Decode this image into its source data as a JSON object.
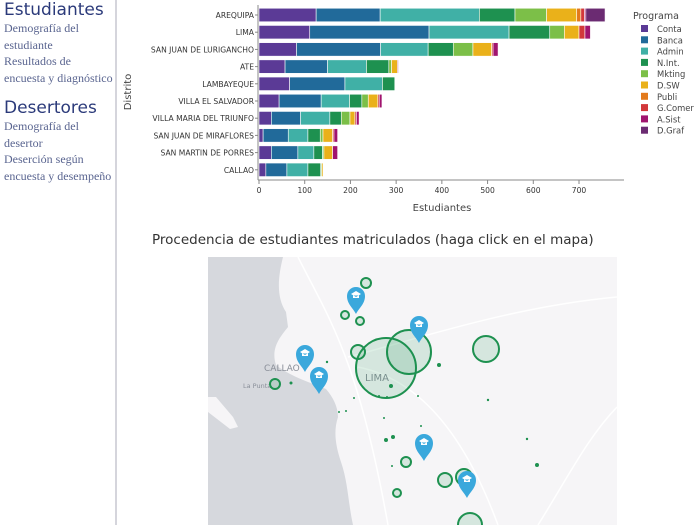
{
  "sidebar": {
    "sections": [
      {
        "title": "Estudiantes",
        "links": [
          "Demografía del estudiante",
          "Resultados de encuesta y diagnóstico"
        ]
      },
      {
        "title": "Desertores",
        "links": [
          "Demografía del desertor",
          "Deserción según encuesta y desempeño"
        ]
      }
    ]
  },
  "chart_data": {
    "type": "bar",
    "orientation": "horizontal",
    "stacked": true,
    "xlabel": "Estudiantes",
    "ylabel": "Distrito",
    "xlim": [
      0,
      760
    ],
    "xticks": [
      0,
      100,
      200,
      300,
      400,
      500,
      600,
      700
    ],
    "legend_title": "Programa",
    "legend_position": "right",
    "categories": [
      "AREQUIPA",
      "LIMA",
      "SAN JUAN DE LURIGANCHO",
      "ATE",
      "LAMBAYEQUE",
      "VILLA EL SALVADOR",
      "VILLA MARIA DEL TRIUNFO",
      "SAN JUAN DE MIRAFLORES",
      "SAN MARTIN DE PORRES",
      "CALLAO"
    ],
    "series": [
      {
        "name": "Conta",
        "color": "#5b3a96",
        "values": [
          125,
          111,
          82,
          57,
          67,
          44,
          27,
          9,
          27,
          15
        ]
      },
      {
        "name": "Banca",
        "color": "#216a9a",
        "values": [
          140,
          261,
          184,
          93,
          121,
          92,
          64,
          55,
          58,
          46
        ]
      },
      {
        "name": "Admin",
        "color": "#40b0a6",
        "values": [
          217,
          175,
          104,
          85,
          82,
          62,
          64,
          43,
          35,
          46
        ]
      },
      {
        "name": "N.Int.",
        "color": "#1e9150",
        "values": [
          78,
          89,
          55,
          49,
          27,
          27,
          25,
          27,
          19,
          28
        ]
      },
      {
        "name": "Mkting",
        "color": "#7cbf48",
        "values": [
          69,
          32,
          43,
          6,
          0,
          14,
          19,
          6,
          3,
          2
        ]
      },
      {
        "name": "D.SW",
        "color": "#eab11a",
        "values": [
          66,
          32,
          41,
          13,
          0,
          21,
          11,
          21,
          19,
          3
        ]
      },
      {
        "name": "Publi",
        "color": "#e37a1c",
        "values": [
          9,
          0,
          0,
          0,
          0,
          0,
          0,
          0,
          0,
          0
        ]
      },
      {
        "name": "G.Comer",
        "color": "#d2383a",
        "values": [
          8,
          13,
          3,
          0,
          0,
          3,
          3,
          3,
          0,
          0
        ]
      },
      {
        "name": "A.Sist",
        "color": "#a0146e",
        "values": [
          3,
          12,
          11,
          2,
          0,
          6,
          6,
          8,
          11,
          0
        ]
      },
      {
        "name": "D.Graf",
        "color": "#6b2b72",
        "values": [
          42,
          0,
          0,
          0,
          0,
          0,
          0,
          0,
          0,
          0
        ]
      }
    ]
  },
  "map": {
    "title": "Procedencia de estudiantes matriculados (haga click en el mapa)",
    "labels": [
      "CALLAO",
      "LIMA",
      "La Punta"
    ],
    "circle_color": "#1e9150",
    "marker_color": "#3aa8dc",
    "marker_icon": "graduation-cap-icon"
  }
}
